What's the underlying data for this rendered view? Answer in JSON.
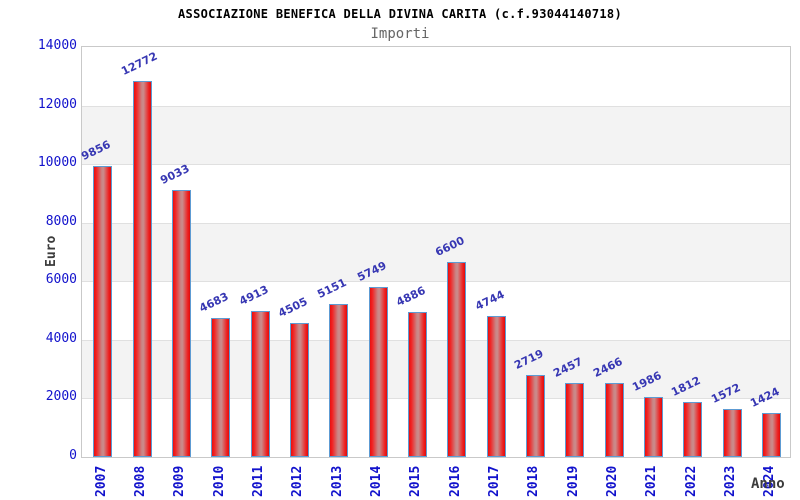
{
  "header": {
    "title": "ASSOCIAZIONE BENEFICA DELLA DIVINA CARITA (c.f.93044140718)",
    "subtitle": "Importi"
  },
  "chart_data": {
    "type": "bar",
    "title": "ASSOCIAZIONE BENEFICA DELLA DIVINA CARITA (c.f.93044140718)",
    "subtitle": "Importi",
    "xlabel": "Anno",
    "ylabel": "Euro",
    "categories": [
      "2007",
      "2008",
      "2009",
      "2010",
      "2011",
      "2012",
      "2013",
      "2014",
      "2015",
      "2016",
      "2017",
      "2018",
      "2019",
      "2020",
      "2021",
      "2022",
      "2023",
      "2024"
    ],
    "values": [
      9856,
      12772,
      9033,
      4683,
      4913,
      4505,
      5151,
      5749,
      4886,
      6600,
      4744,
      2719,
      2457,
      2466,
      1986,
      1812,
      1572,
      1424
    ],
    "ylim": [
      0,
      14000
    ],
    "ytick_interval": 2000,
    "grid": true,
    "legend": "none",
    "colors": {
      "tick_label": "#1212cc",
      "value_label": "#3737b3",
      "axis_title": "#3c3c3c",
      "band_alt": "#f3f3f3",
      "band_main": "#ffffff",
      "grid_line": "#e0e0e0",
      "plot_border": "#c9c9c9",
      "bar_border": "#5d9bd3",
      "bar_red": "#ee1e1e",
      "bar_center": "#c98686"
    }
  }
}
